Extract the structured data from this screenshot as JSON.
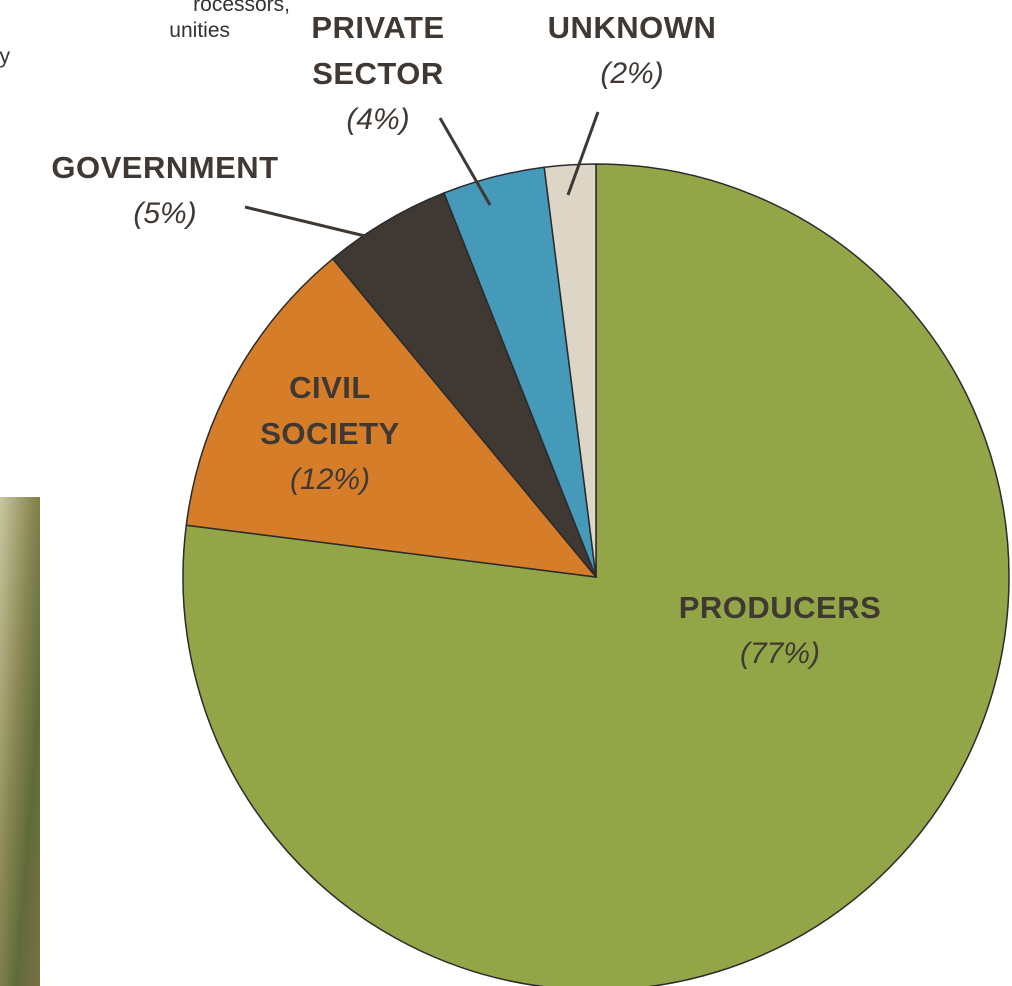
{
  "text_fragments": [
    "rocessors,",
    "unities",
    "y"
  ],
  "chart_data": {
    "type": "pie",
    "categories": [
      "PRODUCERS",
      "CIVIL SOCIETY",
      "GOVERNMENT",
      "PRIVATE SECTOR",
      "UNKNOWN"
    ],
    "values": [
      77,
      12,
      5,
      4,
      2
    ],
    "value_labels": [
      "(77%)",
      "(12%)",
      "(5%)",
      "(4%)",
      "(2%)"
    ],
    "colors": [
      "#93a647",
      "#d67d2a",
      "#3f3833",
      "#4599b9",
      "#ddd5c6"
    ]
  }
}
